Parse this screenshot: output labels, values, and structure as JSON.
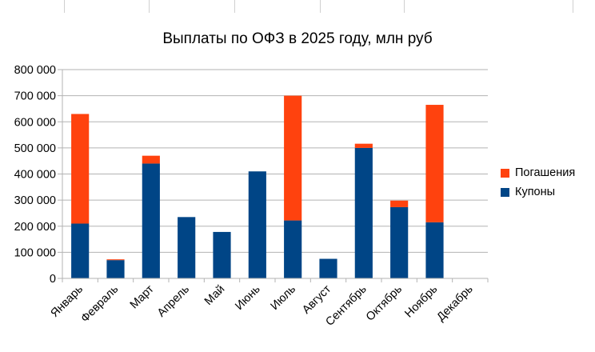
{
  "chart_data": {
    "type": "bar",
    "stacked": true,
    "title": "Выплаты по ОФЗ в 2025 году, млн руб",
    "categories": [
      "Январь",
      "Февраль",
      "Март",
      "Апрель",
      "Май",
      "Июнь",
      "Июль",
      "Август",
      "Сентябрь",
      "Октябрь",
      "Ноябрь",
      "Декабрь"
    ],
    "series": [
      {
        "name": "Купоны",
        "color": "#004586",
        "values": [
          210000,
          70000,
          440000,
          235000,
          178000,
          410000,
          222000,
          75000,
          500000,
          273000,
          215000,
          0
        ]
      },
      {
        "name": "Погашения",
        "color": "#ff420e",
        "values": [
          420000,
          3000,
          30000,
          0,
          0,
          0,
          478000,
          0,
          16000,
          25000,
          450000,
          0
        ]
      }
    ],
    "ylim": [
      0,
      800000
    ],
    "yticks": [
      "0",
      "100 000",
      "200 000",
      "300 000",
      "400 000",
      "500 000",
      "600 000",
      "700 000",
      "800 000"
    ],
    "grid": true,
    "legend": "right"
  },
  "legend_items": [
    {
      "label": "Погашения",
      "color": "#ff420e"
    },
    {
      "label": "Купоны",
      "color": "#004586"
    }
  ]
}
